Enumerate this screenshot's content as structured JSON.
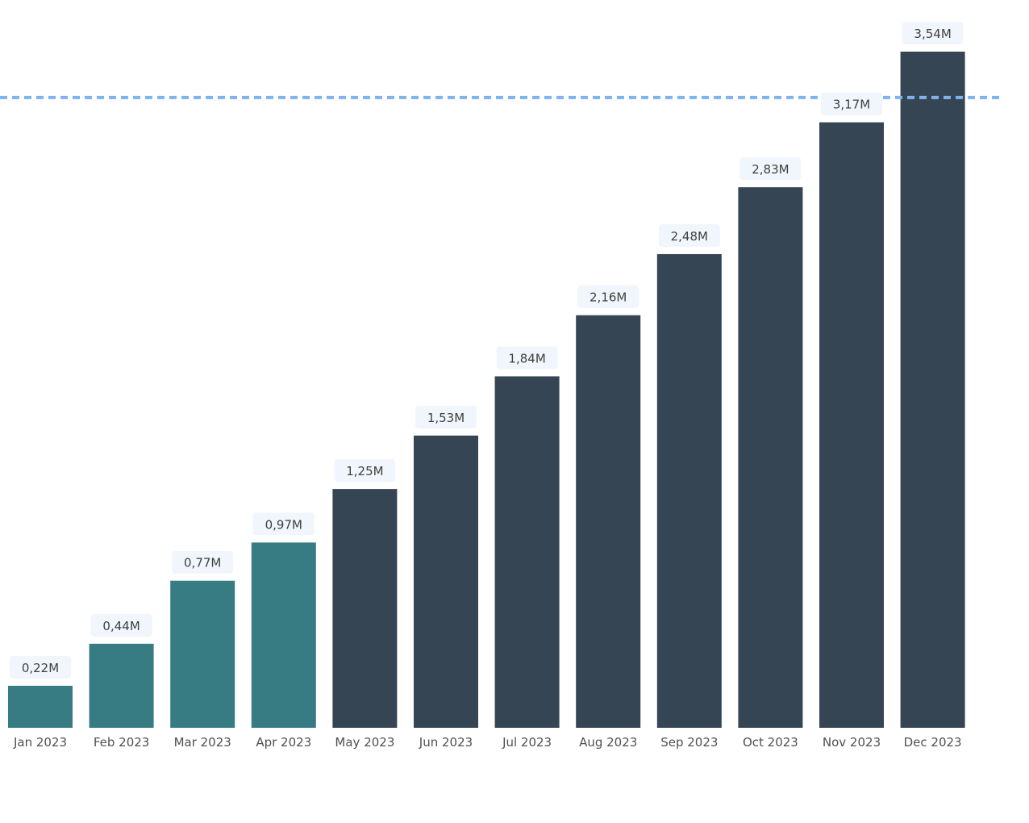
{
  "chart_data": {
    "type": "bar",
    "title": "",
    "xlabel": "",
    "ylabel": "",
    "categories": [
      "Jan 2023",
      "Feb 2023",
      "Mar 2023",
      "Apr 2023",
      "May 2023",
      "Jun 2023",
      "Jul 2023",
      "Aug 2023",
      "Sep 2023",
      "Oct 2023",
      "Nov 2023",
      "Dec 2023"
    ],
    "values": [
      0.22,
      0.44,
      0.77,
      0.97,
      1.25,
      1.53,
      1.84,
      2.16,
      2.48,
      2.83,
      3.17,
      3.54
    ],
    "data_labels": [
      "0,22M",
      "0,44M",
      "0,77M",
      "0,97M",
      "1,25M",
      "1,53M",
      "1,84M",
      "2,16M",
      "2,48M",
      "2,83M",
      "3,17M",
      "3,54M"
    ],
    "highlight_count": 4,
    "colors": {
      "highlight": "#377B83",
      "default": "#364554",
      "reference_line": "#7DB3EE",
      "label_bg": "#F1F6FC"
    },
    "reference_line": 3.3,
    "ylim": [
      0,
      3.54
    ],
    "grid": false,
    "legend": "none"
  }
}
